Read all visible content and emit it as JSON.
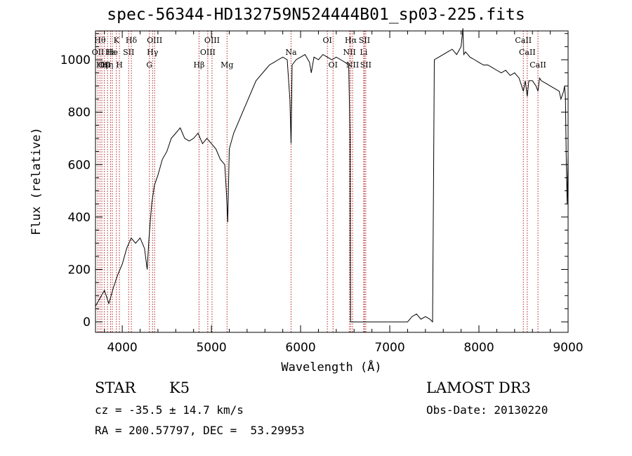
{
  "title": "spec-56344-HD132759N524444B01_sp03-225.fits",
  "info": {
    "class": "STAR",
    "subclass": "K5",
    "survey": "LAMOST DR3",
    "cz": "cz = -35.5 ± 14.7 km/s",
    "obs_date": "Obs-Date: 20130220",
    "coords": "RA = 200.57797, DEC =  53.29953"
  },
  "chart_data": {
    "type": "line",
    "title": "spec-56344-HD132759N524444B01_sp03-225.fits",
    "xlabel": "Wavelength (Å)",
    "ylabel": "Flux (relative)",
    "xlim": [
      3700,
      9000
    ],
    "ylim": [
      -40,
      1110
    ],
    "xticks": [
      4000,
      5000,
      6000,
      7000,
      8000,
      9000
    ],
    "yticks": [
      0,
      200,
      400,
      600,
      800,
      1000
    ],
    "grid": false,
    "line_color": "#000000",
    "marker_color": "#b22222",
    "series": [
      {
        "x": [
          3700,
          3750,
          3800,
          3850,
          3900,
          3950,
          4000,
          4050,
          4100,
          4150,
          4200,
          4250,
          4280,
          4300,
          4330,
          4360,
          4400,
          4450,
          4500,
          4550,
          4600,
          4650,
          4700,
          4750,
          4800,
          4850,
          4900,
          4950,
          5000,
          5050,
          5100,
          5150,
          5170,
          5183,
          5200,
          5250,
          5300,
          5350,
          5400,
          5450,
          5500,
          5550,
          5600,
          5650,
          5700,
          5750,
          5800,
          5850,
          5880,
          5893,
          5905,
          5950,
          6000,
          6050,
          6100,
          6120,
          6150,
          6200,
          6250,
          6300,
          6350,
          6400,
          6450,
          6500,
          6540,
          6555,
          6560,
          6600,
          6800,
          7000,
          7200,
          7250,
          7300,
          7350,
          7400,
          7450,
          7480,
          7490,
          7500,
          7550,
          7600,
          7650,
          7700,
          7750,
          7800,
          7820,
          7830,
          7850,
          7900,
          7950,
          8000,
          8050,
          8100,
          8150,
          8200,
          8250,
          8300,
          8350,
          8400,
          8450,
          8498,
          8520,
          8542,
          8560,
          8600,
          8640,
          8662,
          8680,
          8700,
          8750,
          8800,
          8850,
          8900,
          8920,
          8950,
          8960,
          8970,
          8980,
          8990,
          9000
        ],
        "y": [
          60,
          90,
          120,
          70,
          130,
          180,
          220,
          280,
          320,
          300,
          320,
          280,
          200,
          320,
          450,
          520,
          560,
          620,
          650,
          700,
          720,
          740,
          700,
          690,
          700,
          720,
          680,
          700,
          680,
          660,
          620,
          600,
          480,
          380,
          660,
          720,
          760,
          800,
          840,
          880,
          920,
          940,
          960,
          980,
          990,
          1000,
          1010,
          1000,
          850,
          680,
          980,
          1000,
          1010,
          1020,
          990,
          950,
          1010,
          1000,
          1020,
          1010,
          1000,
          1010,
          1000,
          990,
          980,
          700,
          0,
          0,
          0,
          0,
          0,
          20,
          30,
          10,
          20,
          10,
          0,
          500,
          1000,
          1010,
          1020,
          1030,
          1040,
          1020,
          1050,
          1120,
          1020,
          1030,
          1010,
          1000,
          990,
          980,
          980,
          970,
          960,
          950,
          960,
          940,
          950,
          930,
          880,
          920,
          860,
          920,
          920,
          900,
          880,
          930,
          920,
          910,
          900,
          890,
          880,
          850,
          880,
          900,
          860,
          600,
          450,
          640
        ]
      }
    ],
    "spectral_lines": [
      {
        "wavelength": 3727,
        "label": "OII",
        "row": 2
      },
      {
        "wavelength": 3750,
        "label": "Hθ",
        "row": 1
      },
      {
        "wavelength": 3771,
        "label": "Hη",
        "row": 3
      },
      {
        "wavelength": 3798,
        "label": "OII",
        "row": 3
      },
      {
        "wavelength": 3835,
        "label": "Hη",
        "row": 3
      },
      {
        "wavelength": 3869,
        "label": "Hε",
        "row": 2
      },
      {
        "wavelength": 3889,
        "label": "He",
        "row": 2
      },
      {
        "wavelength": 3934,
        "label": "K",
        "row": 1
      },
      {
        "wavelength": 3968,
        "label": "H",
        "row": 3
      },
      {
        "wavelength": 4072,
        "label": "SII",
        "row": 2
      },
      {
        "wavelength": 4102,
        "label": "Hδ",
        "row": 1
      },
      {
        "wavelength": 4304,
        "label": "G",
        "row": 3
      },
      {
        "wavelength": 4340,
        "label": "Hγ",
        "row": 2
      },
      {
        "wavelength": 4363,
        "label": "OIII",
        "row": 1
      },
      {
        "wavelength": 4861,
        "label": "Hβ",
        "row": 3
      },
      {
        "wavelength": 4959,
        "label": "OIII",
        "row": 2
      },
      {
        "wavelength": 5007,
        "label": "OIII",
        "row": 1
      },
      {
        "wavelength": 5175,
        "label": "Mg",
        "row": 3
      },
      {
        "wavelength": 5893,
        "label": "Na",
        "row": 2
      },
      {
        "wavelength": 6300,
        "label": "OI",
        "row": 1
      },
      {
        "wavelength": 6364,
        "label": "OI",
        "row": 3
      },
      {
        "wavelength": 6548,
        "label": "NII",
        "row": 2
      },
      {
        "wavelength": 6563,
        "label": "Hα",
        "row": 1
      },
      {
        "wavelength": 6583,
        "label": "NII",
        "row": 3
      },
      {
        "wavelength": 6708,
        "label": "Li",
        "row": 2
      },
      {
        "wavelength": 6716,
        "label": "SII",
        "row": 1
      },
      {
        "wavelength": 6731,
        "label": "SII",
        "row": 3
      },
      {
        "wavelength": 8498,
        "label": "CaII",
        "row": 1
      },
      {
        "wavelength": 8542,
        "label": "CaII",
        "row": 2
      },
      {
        "wavelength": 8662,
        "label": "CaII",
        "row": 3
      }
    ]
  }
}
